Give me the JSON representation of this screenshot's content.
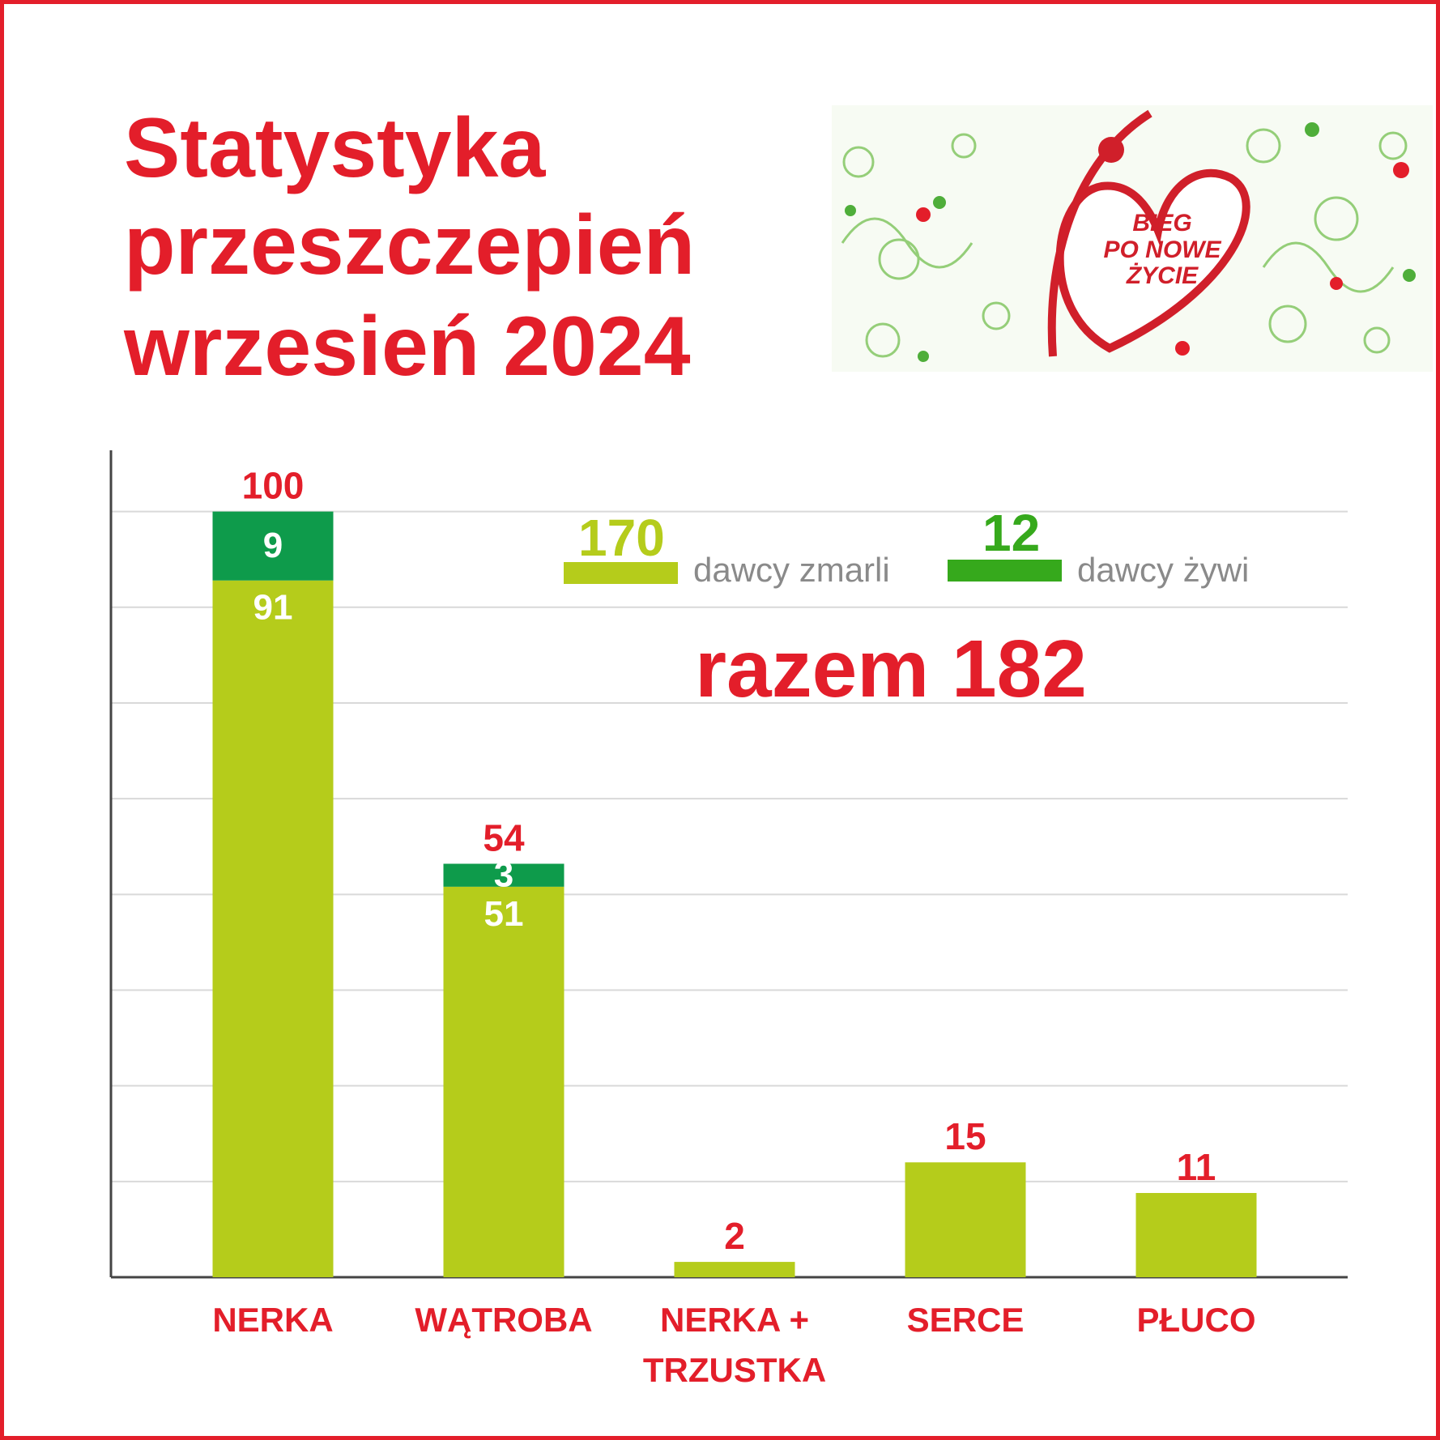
{
  "chart_data": {
    "type": "stacked_bar",
    "title_lines": [
      "Statystyka",
      "przeszczepień",
      "wrzesień 2024"
    ],
    "logo": [
      "BIEG",
      "PO NOWE",
      "ŻYCIE"
    ],
    "annotation": "razem 182",
    "categories": [
      "NERKA",
      "WĄTROBA",
      "NERKA + TRZUSTKA",
      "SERCE",
      "PŁUCO"
    ],
    "series": [
      {
        "name": "dawcy zmarli",
        "color": "#b5cc1b",
        "total": 170,
        "values": [
          91,
          51,
          2,
          15,
          11
        ]
      },
      {
        "name": "dawcy żywi",
        "color": "#0e9b4b",
        "legend_color": "#36a91c",
        "total": 12,
        "values": [
          9,
          3,
          null,
          null,
          null
        ]
      }
    ],
    "totals": [
      100,
      54,
      2,
      15,
      11
    ],
    "ylim": [
      0,
      108
    ],
    "yticks": [
      0,
      12.5,
      25,
      37.5,
      50,
      62.5,
      75,
      87.5,
      100
    ],
    "grid": true
  }
}
